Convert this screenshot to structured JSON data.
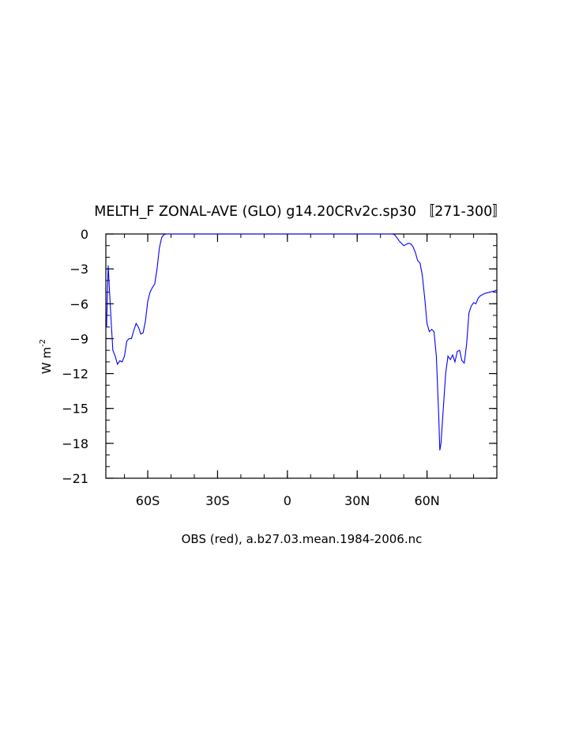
{
  "chart_data": {
    "type": "line",
    "title": "MELTH_F  ZONAL-AVE (GLO) g14.20CRv2c.sp30 〚271-300〛",
    "xlabel": "OBS (red), a.b27.03.mean.1984-2006.nc",
    "ylabel_main": "W m",
    "ylabel_sup": "-2",
    "xlim": [
      -78,
      90
    ],
    "ylim": [
      -21,
      0
    ],
    "x_ticks": [
      {
        "value": -60,
        "label": "60S"
      },
      {
        "value": -30,
        "label": "30S"
      },
      {
        "value": 0,
        "label": "0"
      },
      {
        "value": 30,
        "label": "30N"
      },
      {
        "value": 60,
        "label": "60N"
      }
    ],
    "y_ticks": [
      {
        "value": 0,
        "label": "0"
      },
      {
        "value": -3,
        "label": "−3"
      },
      {
        "value": -6,
        "label": "−6"
      },
      {
        "value": -9,
        "label": "−9"
      },
      {
        "value": -12,
        "label": "−12"
      },
      {
        "value": -15,
        "label": "−15"
      },
      {
        "value": -18,
        "label": "−18"
      },
      {
        "value": -21,
        "label": "−21"
      }
    ],
    "series": [
      {
        "color": "#0000ff",
        "x": [
          -77.7,
          -77.0,
          -76.0,
          -75.0,
          -74.0,
          -73.0,
          -72.0,
          -71.0,
          -70.0,
          -69.0,
          -68.0,
          -67.0,
          -66.0,
          -65.0,
          -64.0,
          -63.0,
          -62.0,
          -61.0,
          -60.0,
          -59.0,
          -58.0,
          -57.0,
          -56.0,
          -55.0,
          -54.0,
          -53.0,
          -52.0,
          -50.0,
          -45.0,
          -30.0,
          0.0,
          30.0,
          44.0,
          45.0,
          46.0,
          47.0,
          48.0,
          49.0,
          50.0,
          51.0,
          52.0,
          53.0,
          54.0,
          55.0,
          56.0,
          57.0,
          58.0,
          59.0,
          60.0,
          61.0,
          62.0,
          63.0,
          64.0,
          65.0,
          65.5,
          66.0,
          67.0,
          68.0,
          69.0,
          70.0,
          71.0,
          72.0,
          73.0,
          74.0,
          75.0,
          76.0,
          77.0,
          78.0,
          79.0,
          80.0,
          81.0,
          82.0,
          83.0,
          84.0,
          85.0,
          86.0,
          87.0,
          88.0,
          89.0,
          90.0
        ],
        "values": [
          -8.0,
          -2.7,
          -6.5,
          -10.0,
          -10.5,
          -11.2,
          -10.9,
          -11.0,
          -10.5,
          -9.2,
          -9.0,
          -9.0,
          -8.3,
          -7.7,
          -8.0,
          -8.6,
          -8.5,
          -7.5,
          -5.8,
          -5.0,
          -4.6,
          -4.3,
          -3.0,
          -1.2,
          -0.3,
          -0.05,
          0.0,
          0.0,
          0.0,
          0.0,
          0.0,
          0.0,
          0.0,
          0.0,
          -0.05,
          -0.3,
          -0.6,
          -0.8,
          -1.0,
          -0.9,
          -0.8,
          -0.85,
          -1.1,
          -1.6,
          -2.3,
          -2.5,
          -3.6,
          -5.5,
          -7.7,
          -8.4,
          -8.2,
          -8.4,
          -10.5,
          -15.5,
          -18.6,
          -18.0,
          -15.0,
          -12.0,
          -10.5,
          -10.8,
          -10.4,
          -11.0,
          -10.1,
          -10.0,
          -10.9,
          -11.1,
          -9.5,
          -6.8,
          -6.2,
          -5.9,
          -6.0,
          -5.5,
          -5.3,
          -5.2,
          -5.1,
          -5.05,
          -5.0,
          -4.95,
          -4.9,
          -4.8
        ]
      }
    ],
    "grid": false,
    "legend": "none"
  }
}
